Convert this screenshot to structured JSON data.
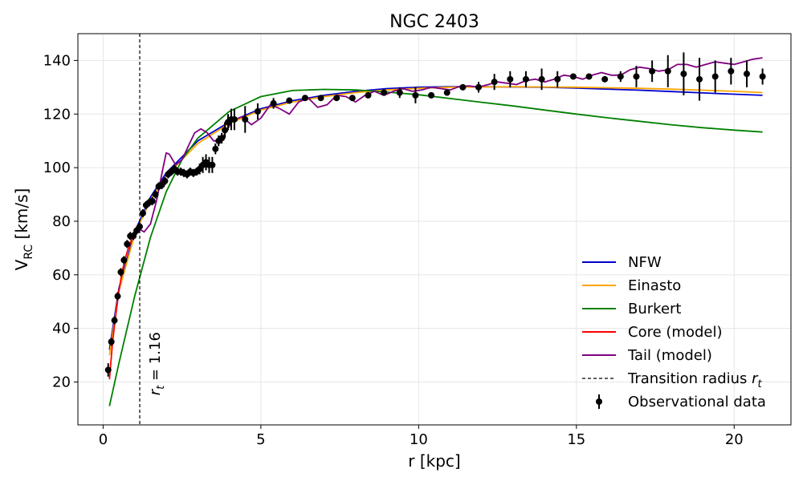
{
  "chart_data": {
    "type": "line",
    "title": "NGC 2403",
    "xlabel": "r [kpc]",
    "ylabel": "V_RC [km/s]",
    "xlim": [
      -0.8,
      21.8
    ],
    "ylim": [
      4,
      150
    ],
    "xticks": [
      0,
      5,
      10,
      15,
      20
    ],
    "yticks": [
      20,
      40,
      60,
      80,
      100,
      120,
      140
    ],
    "grid": true,
    "legend_position": "bottom-right",
    "transition_radius": 1.16,
    "transition_label": "r_t = 1.16",
    "colors": {
      "NFW": "#0000cd",
      "Einasto": "#ffa500",
      "Burkert": "#008000",
      "Core": "#ff0000",
      "Tail": "#800080",
      "data": "#000000"
    },
    "legend": {
      "nfw": "NFW",
      "einasto": "Einasto",
      "burkert": "Burkert",
      "core": "Core (model)",
      "tail": "Tail (model)",
      "transition": "Transition radius r_t",
      "observations": "Observational data"
    },
    "series": [
      {
        "name": "NFW",
        "x": [
          0.2,
          0.5,
          1.0,
          1.5,
          2.0,
          3.0,
          4.0,
          5.0,
          6.0,
          7.0,
          8.0,
          9.0,
          10.0,
          11.0,
          12.0,
          13.0,
          14.0,
          15.0,
          16.0,
          17.0,
          18.0,
          19.0,
          20.0,
          20.9
        ],
        "y": [
          32,
          55,
          76,
          89,
          98,
          110,
          117,
          122,
          125,
          127,
          128.5,
          129.5,
          130,
          130.2,
          130.2,
          130.1,
          130,
          129.7,
          129.3,
          128.9,
          128.4,
          127.9,
          127.4,
          127
        ]
      },
      {
        "name": "Einasto",
        "x": [
          0.2,
          0.5,
          1.0,
          1.5,
          2.0,
          3.0,
          4.0,
          5.0,
          6.0,
          7.0,
          8.0,
          9.0,
          10.0,
          11.0,
          12.0,
          13.0,
          14.0,
          15.0,
          16.0,
          17.0,
          18.0,
          19.0,
          20.0,
          20.9
        ],
        "y": [
          30,
          54,
          75,
          88,
          97,
          109,
          116.5,
          121.5,
          124.5,
          126.5,
          128,
          129,
          129.6,
          130,
          130.1,
          130.2,
          130.1,
          130,
          129.8,
          129.6,
          129.3,
          128.9,
          128.5,
          128
        ]
      },
      {
        "name": "Burkert",
        "x": [
          0.2,
          0.5,
          1.0,
          1.5,
          2.0,
          2.5,
          3.0,
          4.0,
          5.0,
          6.0,
          7.0,
          8.0,
          9.0,
          10.0,
          11.0,
          12.0,
          13.0,
          14.0,
          15.0,
          16.0,
          17.0,
          18.0,
          19.0,
          20.0,
          20.9
        ],
        "y": [
          11,
          27,
          52,
          74,
          91,
          103,
          111,
          121,
          126.5,
          128.8,
          129.2,
          129,
          128.2,
          127.2,
          125.8,
          124.4,
          123,
          121.5,
          120,
          118.6,
          117.3,
          116,
          114.9,
          114,
          113.3
        ]
      },
      {
        "name": "Core (model)",
        "x": [
          0.2,
          0.3,
          0.4,
          0.5,
          0.6,
          0.7,
          0.8,
          0.9,
          1.0,
          1.1,
          1.16
        ],
        "y": [
          21,
          35,
          45,
          54,
          61,
          66,
          70,
          73,
          75.5,
          77,
          78
        ]
      },
      {
        "name": "Tail (model)",
        "x": [
          1.16,
          1.3,
          1.5,
          1.7,
          1.9,
          2.0,
          2.1,
          2.3,
          2.5,
          2.7,
          2.9,
          3.1,
          3.3,
          3.5,
          3.7,
          3.9,
          4.1,
          4.4,
          4.7,
          5.0,
          5.3,
          5.6,
          5.9,
          6.2,
          6.5,
          6.8,
          7.1,
          7.4,
          7.7,
          8.0,
          8.3,
          8.6,
          8.9,
          9.2,
          9.5,
          9.8,
          10.1,
          10.4,
          10.7,
          11.0,
          11.3,
          11.6,
          11.9,
          12.2,
          12.5,
          12.8,
          13.1,
          13.4,
          13.7,
          14.0,
          14.3,
          14.6,
          14.9,
          15.2,
          15.5,
          15.8,
          16.1,
          16.4,
          16.7,
          17.0,
          17.3,
          17.6,
          17.9,
          18.2,
          18.5,
          18.8,
          19.1,
          19.4,
          19.7,
          20.0,
          20.3,
          20.6,
          20.9
        ],
        "y": [
          77,
          76,
          79,
          88,
          100,
          105.5,
          105,
          101,
          103,
          108,
          113,
          114.5,
          113,
          110,
          110,
          113.5,
          117.5,
          119,
          116,
          118.5,
          123.5,
          122,
          120,
          124.5,
          126,
          122.5,
          123.5,
          127,
          126.5,
          124.5,
          127,
          128.5,
          127,
          128.5,
          129.5,
          128.5,
          129,
          130,
          129.5,
          129,
          130.3,
          130.5,
          130,
          131,
          132,
          131.5,
          131,
          132.5,
          133,
          132,
          133,
          134.5,
          134,
          133,
          134.5,
          135.5,
          134.5,
          134.5,
          136.5,
          137.5,
          137,
          136,
          136.5,
          138.5,
          138.5,
          137.5,
          138.5,
          139.5,
          139,
          138.5,
          139.5,
          140.5,
          141
        ]
      }
    ],
    "observations": {
      "name": "Observational data",
      "points": [
        [
          0.16,
          24.5,
          2.5
        ],
        [
          0.26,
          35,
          1.5
        ],
        [
          0.36,
          43,
          1.5
        ],
        [
          0.46,
          52,
          1.5
        ],
        [
          0.56,
          61,
          1.5
        ],
        [
          0.66,
          65.5,
          1.5
        ],
        [
          0.76,
          71.5,
          1.5
        ],
        [
          0.86,
          74.5,
          1.5
        ],
        [
          0.96,
          74.5,
          1.5
        ],
        [
          1.06,
          76.5,
          1.5
        ],
        [
          1.16,
          78,
          1.5
        ],
        [
          1.26,
          83,
          1.5
        ],
        [
          1.36,
          86,
          1.5
        ],
        [
          1.46,
          87,
          1.5
        ],
        [
          1.56,
          87.5,
          1.5
        ],
        [
          1.66,
          90,
          1.5
        ],
        [
          1.76,
          93,
          1.5
        ],
        [
          1.86,
          93.5,
          1.5
        ],
        [
          1.96,
          95,
          1.5
        ],
        [
          2.06,
          97.5,
          1.5
        ],
        [
          2.16,
          98.5,
          1.5
        ],
        [
          2.26,
          99.5,
          1.5
        ],
        [
          2.36,
          98.5,
          1.5
        ],
        [
          2.46,
          98.5,
          1.5
        ],
        [
          2.56,
          98,
          1.5
        ],
        [
          2.66,
          97.5,
          1.5
        ],
        [
          2.76,
          98.5,
          1.5
        ],
        [
          2.86,
          98,
          1.5
        ],
        [
          2.96,
          98.5,
          1.5
        ],
        [
          3.06,
          99.5,
          2
        ],
        [
          3.16,
          101,
          3
        ],
        [
          3.26,
          102,
          3
        ],
        [
          3.36,
          101,
          3
        ],
        [
          3.46,
          101,
          3
        ],
        [
          3.56,
          107,
          2
        ],
        [
          3.66,
          110,
          2
        ],
        [
          3.76,
          111,
          2
        ],
        [
          3.86,
          114,
          3
        ],
        [
          3.96,
          117,
          3
        ],
        [
          4.06,
          118,
          4
        ],
        [
          4.16,
          118,
          4
        ],
        [
          4.5,
          118,
          5
        ],
        [
          4.9,
          121,
          3
        ],
        [
          5.4,
          124,
          2
        ],
        [
          5.9,
          125,
          1
        ],
        [
          6.4,
          126,
          1
        ],
        [
          6.9,
          126,
          1
        ],
        [
          7.4,
          126,
          1
        ],
        [
          7.9,
          126,
          1
        ],
        [
          8.4,
          127,
          1
        ],
        [
          8.9,
          128,
          1
        ],
        [
          9.4,
          128,
          2
        ],
        [
          9.9,
          127,
          3
        ],
        [
          10.4,
          127,
          1
        ],
        [
          10.9,
          128,
          1
        ],
        [
          11.4,
          130,
          1
        ],
        [
          11.9,
          130,
          2
        ],
        [
          12.4,
          132,
          3
        ],
        [
          12.9,
          133,
          3
        ],
        [
          13.4,
          133,
          3
        ],
        [
          13.9,
          133,
          4
        ],
        [
          14.4,
          133,
          3
        ],
        [
          14.9,
          134,
          1
        ],
        [
          15.4,
          134,
          1
        ],
        [
          15.9,
          133,
          1
        ],
        [
          16.4,
          134,
          2
        ],
        [
          16.9,
          134,
          4
        ],
        [
          17.4,
          136,
          4
        ],
        [
          17.9,
          136,
          6
        ],
        [
          18.4,
          135,
          8
        ],
        [
          18.9,
          133,
          8
        ],
        [
          19.4,
          134,
          6
        ],
        [
          19.9,
          136,
          5
        ],
        [
          20.4,
          135,
          5
        ],
        [
          20.9,
          134,
          3
        ]
      ]
    }
  }
}
